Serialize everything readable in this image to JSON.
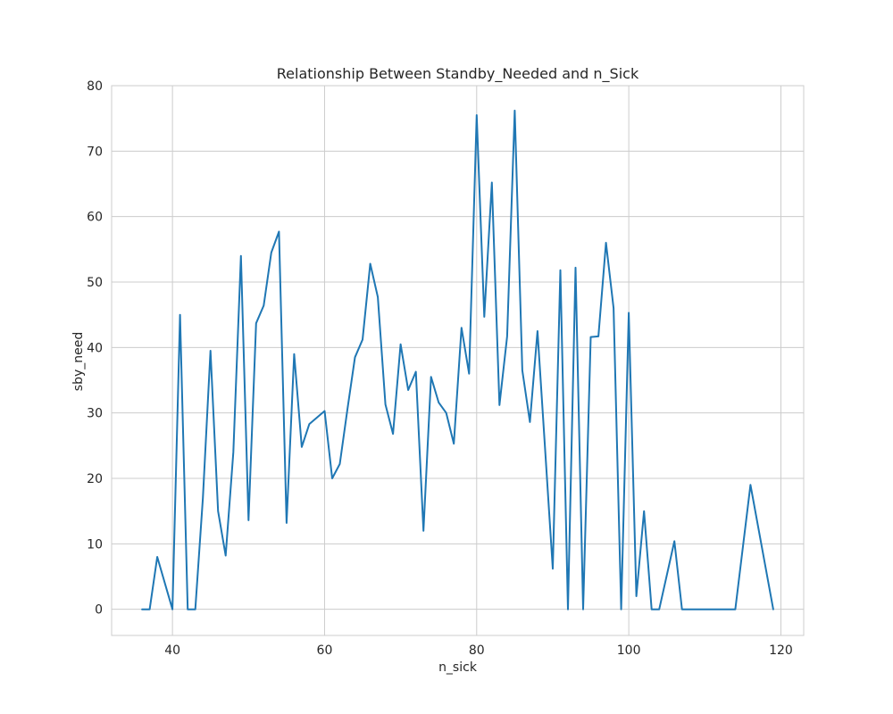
{
  "chart_data": {
    "type": "line",
    "title": "Relationship Between Standby_Needed and n_Sick",
    "xlabel": "n_sick",
    "ylabel": "sby_need",
    "xlim": [
      32,
      123
    ],
    "ylim": [
      -4,
      80
    ],
    "xticks": [
      40,
      60,
      80,
      100,
      120
    ],
    "yticks": [
      0,
      10,
      20,
      30,
      40,
      50,
      60,
      70,
      80
    ],
    "grid": true,
    "line_color": "#1f77b4",
    "series": [
      {
        "x": [
          36,
          37,
          38,
          40,
          41,
          42,
          43,
          44,
          45,
          46,
          47,
          48,
          49,
          50,
          51,
          52,
          53,
          54,
          55,
          56,
          57,
          58,
          60,
          61,
          62,
          63,
          64,
          65,
          66,
          67,
          68,
          69,
          70,
          71,
          72,
          73,
          74,
          75,
          76,
          77,
          78,
          79,
          80,
          81,
          82,
          83,
          84,
          85,
          86,
          87,
          88,
          89,
          90,
          91,
          92,
          93,
          94,
          95,
          96,
          97,
          98,
          99,
          100,
          101,
          102,
          103,
          104,
          106,
          107,
          108,
          110,
          112,
          114,
          116,
          119
        ],
        "y": [
          0,
          0,
          8,
          0,
          45,
          0,
          0,
          17,
          39.5,
          15,
          8.2,
          24,
          54,
          13.6,
          43.7,
          46.4,
          54.5,
          57.7,
          13.2,
          39,
          24.8,
          28.3,
          30.3,
          20,
          22.2,
          30.5,
          38.5,
          41.2,
          52.8,
          47.7,
          31.3,
          26.8,
          40.5,
          33.5,
          36.3,
          12,
          35.5,
          31.6,
          30,
          25.3,
          43,
          36,
          75.5,
          44.7,
          65.2,
          31.2,
          41.7,
          76.2,
          36.5,
          28.6,
          42.5,
          24.5,
          6.2,
          51.8,
          0,
          52.2,
          0,
          41.6,
          41.7,
          56,
          46,
          0,
          45.3,
          2,
          15,
          0,
          0,
          10.4,
          0,
          0,
          0,
          0,
          0,
          19,
          0
        ]
      }
    ]
  }
}
